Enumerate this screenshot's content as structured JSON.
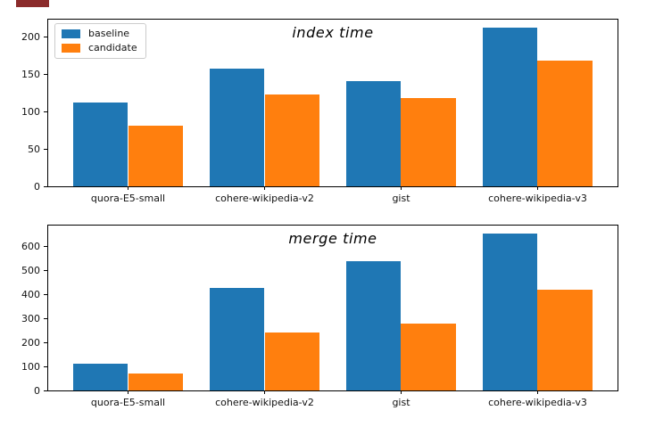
{
  "colors": {
    "baseline": "#1f77b4",
    "candidate": "#ff7f0e",
    "spine": "#000000",
    "tick_text": "#111111",
    "legend_border": "#cccccc",
    "top_left_artifact": "#8b2b2b",
    "background": "#ffffff"
  },
  "legend": {
    "position": "upper left",
    "items": [
      {
        "label": "baseline"
      },
      {
        "label": "candidate"
      }
    ]
  },
  "chart_data": [
    {
      "type": "bar",
      "title": "index time",
      "xlabel": "",
      "ylabel": "",
      "categories": [
        "quora-E5-small",
        "cohere-wikipedia-v2",
        "gist",
        "cohere-wikipedia-v3"
      ],
      "series": [
        {
          "name": "baseline",
          "values": [
            112,
            158,
            141,
            212
          ]
        },
        {
          "name": "candidate",
          "values": [
            81,
            123,
            118,
            168
          ]
        }
      ],
      "yticks": [
        0,
        50,
        100,
        150,
        200
      ],
      "ylim": [
        0,
        223
      ],
      "grid": false,
      "legend_position": "upper left"
    },
    {
      "type": "bar",
      "title": "merge time",
      "xlabel": "",
      "ylabel": "",
      "categories": [
        "quora-E5-small",
        "cohere-wikipedia-v2",
        "gist",
        "cohere-wikipedia-v3"
      ],
      "series": [
        {
          "name": "baseline",
          "values": [
            113,
            428,
            540,
            655
          ]
        },
        {
          "name": "candidate",
          "values": [
            72,
            242,
            280,
            420
          ]
        }
      ],
      "yticks": [
        0,
        100,
        200,
        300,
        400,
        500,
        600
      ],
      "ylim": [
        0,
        687
      ],
      "grid": false,
      "legend_position": "none"
    }
  ]
}
